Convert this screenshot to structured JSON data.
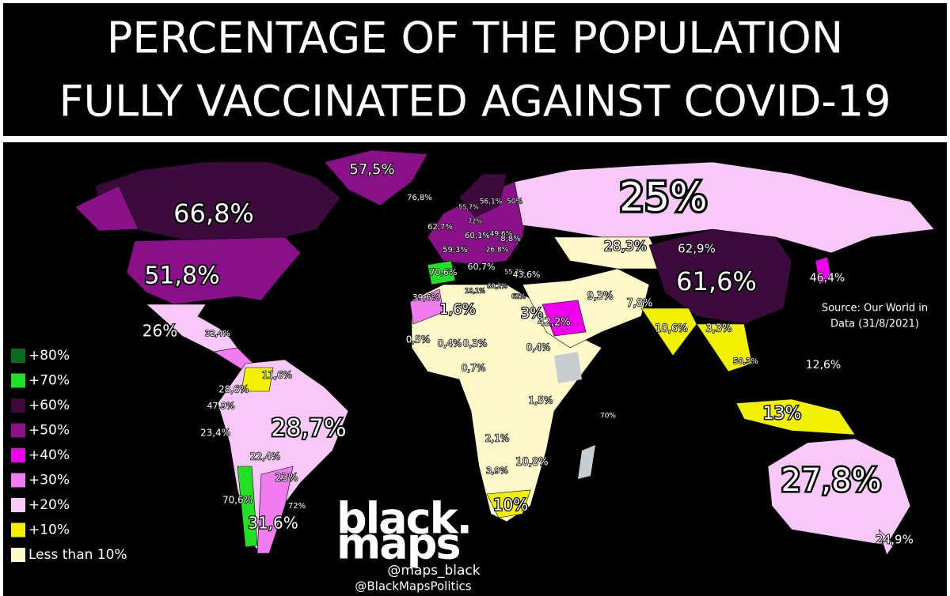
{
  "title": [
    "PERCENTAGE OF THE POPULATION",
    "FULLY VACCINATED AGAINST COVID-19"
  ],
  "legend": [
    {
      "label": "+80%",
      "color": "#0b6b1c"
    },
    {
      "label": "+70%",
      "color": "#22e022"
    },
    {
      "label": "+60%",
      "color": "#3d0a3d"
    },
    {
      "label": "+50%",
      "color": "#8a108a"
    },
    {
      "label": "+40%",
      "color": "#ee00ee"
    },
    {
      "label": "+30%",
      "color": "#f07cf0"
    },
    {
      "label": "+20%",
      "color": "#f8c8f8"
    },
    {
      "label": "+10%",
      "color": "#f2f200"
    },
    {
      "label": "Less than 10%",
      "color": "#fff8c8"
    }
  ],
  "source": [
    "Source: Our World in",
    "Data (31/8/2021)"
  ],
  "brand": [
    "black.",
    "maps"
  ],
  "handles": [
    "@maps_black",
    "@BlackMapsPolitics"
  ],
  "labels": [
    "57,5%",
    "76,8%",
    "66,8%",
    "25%",
    "55,7%",
    "56,1%",
    "50%",
    "62,7%",
    "72%",
    "60,1%",
    "49,6%",
    "8,8%",
    "28,3%",
    "62,9%",
    "59,3%",
    "26,8%",
    "51,8%",
    "70,6%",
    "60,7%",
    "55,3%",
    "43,6%",
    "46,4%",
    "61,6%",
    "39,6%",
    "1,6%",
    "18,1%",
    "80,2%",
    "62%",
    "9,3%",
    "7,8%",
    "3%",
    "42,2%",
    "10,6%",
    "3,3%",
    "26%",
    "32,4%",
    "0,5%",
    "0,4%",
    "0,3%",
    "0,4%",
    "50,3%",
    "12,6%",
    "0,7%",
    "11,6%",
    "28,6%",
    "47,9%",
    "1,5%",
    "70%",
    "13%",
    "23,4%",
    "28,7%",
    "2,1%",
    "22,4%",
    "10,8%",
    "23%",
    "3,9%",
    "27,8%",
    "70,6%",
    "72%",
    "10%",
    "31,6%",
    "24,9%"
  ]
}
